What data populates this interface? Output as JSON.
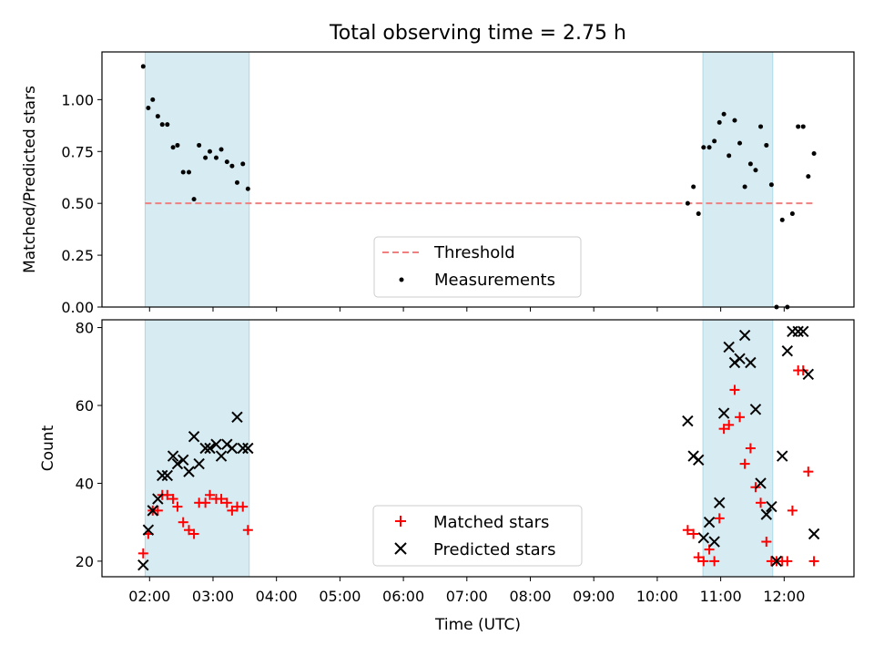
{
  "chart_data": [
    {
      "type": "scatter",
      "title": "Total observing time = 2.75 h",
      "xlabel": "",
      "ylabel": "Matched/Predicted stars",
      "x_unit": "hours UTC",
      "xlim": [
        1.25,
        13.1
      ],
      "ylim": [
        0,
        1.23
      ],
      "yticks": [
        0.0,
        0.25,
        0.5,
        0.75,
        1.0
      ],
      "ytick_labels": [
        "0.00",
        "0.25",
        "0.50",
        "0.75",
        "1.00"
      ],
      "shaded_intervals": [
        [
          1.93,
          3.57
        ],
        [
          10.72,
          11.82
        ]
      ],
      "shade_color": "#add8e6",
      "threshold": {
        "name": "Threshold",
        "y": 0.5,
        "x_range": [
          1.93,
          12.5
        ],
        "color": "#f08080",
        "style": "dashed"
      },
      "series": [
        {
          "name": "Measurements",
          "marker": "dot",
          "color": "#000000",
          "x": [
            1.9,
            1.98,
            2.05,
            2.13,
            2.2,
            2.28,
            2.37,
            2.44,
            2.53,
            2.62,
            2.7,
            2.78,
            2.88,
            2.95,
            3.05,
            3.13,
            3.22,
            3.3,
            3.38,
            3.47,
            3.55,
            10.48,
            10.57,
            10.65,
            10.73,
            10.82,
            10.9,
            10.98,
            11.05,
            11.13,
            11.22,
            11.3,
            11.38,
            11.47,
            11.55,
            11.63,
            11.72,
            11.8,
            11.88,
            11.97,
            12.05,
            12.13,
            12.22,
            12.3,
            12.38,
            12.47
          ],
          "y": [
            1.16,
            0.96,
            1.0,
            0.92,
            0.88,
            0.88,
            0.77,
            0.78,
            0.65,
            0.65,
            0.52,
            0.78,
            0.72,
            0.75,
            0.72,
            0.76,
            0.7,
            0.68,
            0.6,
            0.69,
            0.57,
            0.5,
            0.58,
            0.45,
            0.77,
            0.77,
            0.8,
            0.89,
            0.93,
            0.73,
            0.9,
            0.79,
            0.58,
            0.69,
            0.66,
            0.87,
            0.78,
            0.59,
            0.0,
            0.42,
            0.0,
            0.45,
            0.87,
            0.87,
            0.63,
            0.74
          ]
        }
      ],
      "legend": [
        "Threshold",
        "Measurements"
      ],
      "legend_position": "lower-center",
      "grid": false
    },
    {
      "type": "scatter",
      "title": "",
      "xlabel": "Time (UTC)",
      "ylabel": "Count",
      "x_unit": "hours UTC",
      "xlim": [
        1.25,
        13.1
      ],
      "ylim": [
        16,
        82
      ],
      "yticks": [
        20,
        40,
        60,
        80
      ],
      "ytick_labels": [
        "20",
        "40",
        "60",
        "80"
      ],
      "xticks": [
        2,
        3,
        4,
        5,
        6,
        7,
        8,
        9,
        10,
        11,
        12
      ],
      "xtick_labels": [
        "02:00",
        "03:00",
        "04:00",
        "05:00",
        "06:00",
        "07:00",
        "08:00",
        "09:00",
        "10:00",
        "11:00",
        "12:00"
      ],
      "shaded_intervals": [
        [
          1.93,
          3.57
        ],
        [
          10.72,
          11.82
        ]
      ],
      "shade_color": "#add8e6",
      "series": [
        {
          "name": "Matched stars",
          "marker": "plus",
          "color": "#ff0000",
          "x": [
            1.9,
            1.98,
            2.05,
            2.13,
            2.2,
            2.28,
            2.37,
            2.44,
            2.53,
            2.62,
            2.7,
            2.78,
            2.88,
            2.95,
            3.05,
            3.13,
            3.22,
            3.3,
            3.38,
            3.47,
            3.55,
            10.48,
            10.57,
            10.65,
            10.73,
            10.82,
            10.9,
            10.98,
            11.05,
            11.13,
            11.22,
            11.3,
            11.38,
            11.47,
            11.55,
            11.63,
            11.72,
            11.8,
            11.88,
            11.97,
            12.05,
            12.13,
            12.22,
            12.3,
            12.38,
            12.47
          ],
          "y": [
            22,
            27,
            33,
            33,
            37,
            37,
            36,
            34,
            30,
            28,
            27,
            35,
            35,
            37,
            36,
            36,
            35,
            33,
            34,
            34,
            28,
            28,
            27,
            21,
            20,
            23,
            20,
            31,
            54,
            55,
            64,
            57,
            45,
            49,
            39,
            35,
            25,
            20,
            20,
            20,
            20,
            33,
            69,
            69,
            43,
            20
          ]
        },
        {
          "name": "Predicted stars",
          "marker": "x",
          "color": "#000000",
          "x": [
            1.9,
            1.98,
            2.05,
            2.13,
            2.2,
            2.28,
            2.37,
            2.44,
            2.53,
            2.62,
            2.7,
            2.78,
            2.88,
            2.95,
            3.05,
            3.13,
            3.22,
            3.3,
            3.38,
            3.47,
            3.55,
            10.48,
            10.57,
            10.65,
            10.73,
            10.82,
            10.9,
            10.98,
            11.05,
            11.13,
            11.22,
            11.3,
            11.38,
            11.47,
            11.55,
            11.63,
            11.72,
            11.8,
            11.88,
            11.97,
            12.05,
            12.13,
            12.22,
            12.3,
            12.38,
            12.47
          ],
          "y": [
            19,
            28,
            33,
            36,
            42,
            42,
            47,
            45,
            46,
            43,
            52,
            45,
            49,
            49,
            50,
            47,
            50,
            49,
            57,
            49,
            49,
            56,
            47,
            46,
            26,
            30,
            25,
            35,
            58,
            75,
            71,
            72,
            78,
            71,
            59,
            40,
            32,
            34,
            20,
            47,
            74,
            79,
            79,
            79,
            68,
            27
          ]
        }
      ],
      "legend": [
        "Matched stars",
        "Predicted stars"
      ],
      "legend_position": "lower-center",
      "grid": false
    }
  ]
}
